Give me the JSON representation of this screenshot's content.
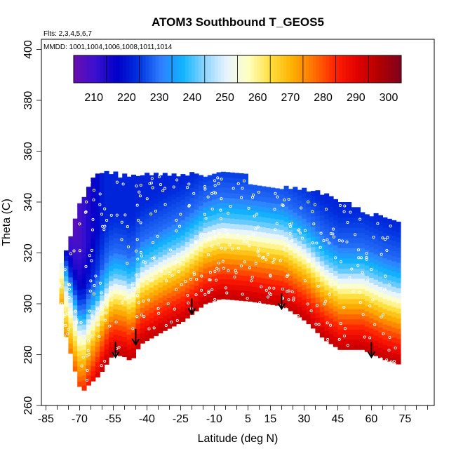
{
  "chart_data": {
    "type": "heatmap",
    "title": "ATOM3 Southbound T_GEOS5",
    "annotations": {
      "flights": "Flts: 2,3,4,5,6,7",
      "dates": "MMDD: 1001,1004,1006,1008,1011,1014"
    },
    "xlabel": "Latitude (deg N)",
    "ylabel": "Theta (C)",
    "xlim": [
      -87,
      88
    ],
    "ylim": [
      260,
      404
    ],
    "x_ticks": [
      -85,
      -70,
      -55,
      -40,
      -25,
      -10,
      5,
      15,
      30,
      45,
      60,
      75
    ],
    "x_minor_ticks": [
      -80,
      -75,
      -65,
      -60,
      -50,
      -45,
      -35,
      -30,
      -20,
      -15,
      -5,
      0,
      10,
      20,
      25,
      35,
      40,
      50,
      55,
      65,
      70,
      80,
      85
    ],
    "y_ticks": [
      260,
      280,
      300,
      320,
      340,
      360,
      380,
      400
    ],
    "colorbar": {
      "min": 200,
      "max": 300,
      "ticks": [
        210,
        220,
        230,
        240,
        250,
        260,
        270,
        280,
        290,
        300
      ],
      "colors": [
        "#6a0dad",
        "#3a10d0",
        "#0000c8",
        "#0033e0",
        "#2f7fff",
        "#10b4ff",
        "#8fd4ff",
        "#e8f4ff",
        "#ffffc0",
        "#ffe040",
        "#ffb000",
        "#ff7000",
        "#ff2000",
        "#e00000",
        "#b00000",
        "#800020"
      ]
    },
    "tropopause_arrows": [
      {
        "lat": -54,
        "theta": 279
      },
      {
        "lat": -45,
        "theta": 284
      },
      {
        "lat": -20,
        "theta": 296
      },
      {
        "lat": 20,
        "theta": 298
      },
      {
        "lat": 60,
        "theta": 279
      }
    ],
    "coverage": {
      "upper_boundary": [
        [
          -79,
          316
        ],
        [
          -76,
          322
        ],
        [
          -74,
          328
        ],
        [
          -72,
          336
        ],
        [
          -68,
          344
        ],
        [
          -64,
          351
        ],
        [
          -54,
          351
        ],
        [
          -53,
          348
        ],
        [
          -50,
          350
        ],
        [
          -35,
          350
        ],
        [
          -20,
          350
        ],
        [
          -10,
          350
        ],
        [
          3,
          350
        ],
        [
          4,
          346
        ],
        [
          15,
          345
        ],
        [
          30,
          344
        ],
        [
          40,
          342
        ],
        [
          50,
          338
        ],
        [
          60,
          334
        ],
        [
          70,
          331
        ],
        [
          72,
          330
        ],
        [
          72,
          330
        ]
      ],
      "lower_boundary": [
        [
          -79,
          300
        ],
        [
          -78,
          290
        ],
        [
          -76,
          284
        ],
        [
          -74,
          277
        ],
        [
          -72,
          270
        ],
        [
          -70,
          265
        ],
        [
          -67,
          268
        ],
        [
          -62,
          272
        ],
        [
          -57,
          279
        ],
        [
          -55,
          280
        ],
        [
          -50,
          279
        ],
        [
          -48,
          277
        ],
        [
          -44,
          284
        ],
        [
          -40,
          286
        ],
        [
          -34,
          289
        ],
        [
          -25,
          293
        ],
        [
          -15,
          300
        ],
        [
          -8,
          302
        ],
        [
          5,
          301
        ],
        [
          20,
          299
        ],
        [
          30,
          293
        ],
        [
          38,
          286
        ],
        [
          45,
          282
        ],
        [
          55,
          282
        ],
        [
          65,
          278
        ],
        [
          72,
          276
        ]
      ]
    },
    "field_bands": [
      {
        "theta_offset": 0,
        "value": 290
      },
      {
        "theta_offset": 6,
        "value": 282
      },
      {
        "theta_offset": 12,
        "value": 274
      },
      {
        "theta_offset": 18,
        "value": 264
      },
      {
        "theta_offset": 24,
        "value": 252
      },
      {
        "theta_offset": 30,
        "value": 238
      },
      {
        "theta_offset": 40,
        "value": 225
      },
      {
        "theta_offset": 55,
        "value": 218
      }
    ]
  }
}
